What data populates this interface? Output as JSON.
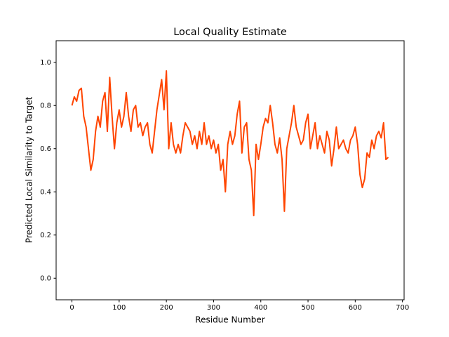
{
  "chart_data": {
    "type": "line",
    "title": "Local Quality Estimate",
    "x_label": "Residue Number",
    "y_label": "Predicted Local Similarity to Target",
    "x": [
      0,
      5,
      10,
      15,
      20,
      25,
      30,
      35,
      40,
      45,
      50,
      55,
      60,
      65,
      70,
      75,
      80,
      85,
      90,
      95,
      100,
      105,
      110,
      115,
      120,
      125,
      130,
      135,
      140,
      145,
      150,
      155,
      160,
      165,
      170,
      175,
      180,
      185,
      190,
      195,
      200,
      205,
      210,
      215,
      220,
      225,
      230,
      235,
      240,
      245,
      250,
      255,
      260,
      265,
      270,
      275,
      280,
      285,
      290,
      295,
      300,
      305,
      310,
      315,
      320,
      325,
      330,
      335,
      340,
      345,
      350,
      355,
      360,
      365,
      370,
      375,
      380,
      385,
      390,
      395,
      400,
      405,
      410,
      415,
      420,
      425,
      430,
      435,
      440,
      445,
      450,
      455,
      460,
      465,
      470,
      475,
      480,
      485,
      490,
      495,
      500,
      505,
      510,
      515,
      520,
      525,
      530,
      535,
      540,
      545,
      550,
      555,
      560,
      565,
      570,
      575,
      580,
      585,
      590,
      595,
      600,
      605,
      610,
      615,
      620,
      625,
      630,
      635,
      640,
      645,
      650,
      655,
      660,
      665,
      670
    ],
    "series": [
      {
        "color": "#ff4500",
        "values": [
          0.8,
          0.84,
          0.82,
          0.87,
          0.88,
          0.75,
          0.7,
          0.6,
          0.5,
          0.55,
          0.68,
          0.75,
          0.7,
          0.82,
          0.86,
          0.68,
          0.93,
          0.75,
          0.6,
          0.72,
          0.78,
          0.7,
          0.75,
          0.86,
          0.75,
          0.68,
          0.78,
          0.8,
          0.7,
          0.72,
          0.66,
          0.7,
          0.72,
          0.62,
          0.58,
          0.68,
          0.78,
          0.85,
          0.92,
          0.78,
          0.96,
          0.6,
          0.72,
          0.62,
          0.58,
          0.62,
          0.58,
          0.66,
          0.72,
          0.7,
          0.68,
          0.62,
          0.66,
          0.6,
          0.68,
          0.62,
          0.72,
          0.62,
          0.66,
          0.6,
          0.64,
          0.58,
          0.62,
          0.5,
          0.55,
          0.4,
          0.62,
          0.68,
          0.62,
          0.66,
          0.76,
          0.82,
          0.58,
          0.7,
          0.72,
          0.55,
          0.5,
          0.29,
          0.62,
          0.55,
          0.62,
          0.7,
          0.74,
          0.72,
          0.8,
          0.72,
          0.62,
          0.58,
          0.65,
          0.55,
          0.31,
          0.6,
          0.66,
          0.72,
          0.8,
          0.7,
          0.66,
          0.62,
          0.64,
          0.72,
          0.76,
          0.6,
          0.66,
          0.72,
          0.6,
          0.66,
          0.62,
          0.58,
          0.68,
          0.64,
          0.52,
          0.6,
          0.7,
          0.6,
          0.62,
          0.64,
          0.6,
          0.58,
          0.64,
          0.66,
          0.7,
          0.62,
          0.48,
          0.42,
          0.46,
          0.58,
          0.56,
          0.64,
          0.6,
          0.66,
          0.68,
          0.65,
          0.72,
          0.55,
          0.56
        ]
      }
    ],
    "xlim": [
      -33.5,
      703.5
    ],
    "ylim": [
      -0.1,
      1.1
    ],
    "xticks": [
      0,
      100,
      200,
      300,
      400,
      500,
      600,
      700
    ],
    "yticks": [
      {
        "value": 0,
        "label": "0.0"
      },
      0.2,
      0.4,
      0.6,
      0.8,
      {
        "value": 1,
        "label": "1.0"
      }
    ]
  }
}
